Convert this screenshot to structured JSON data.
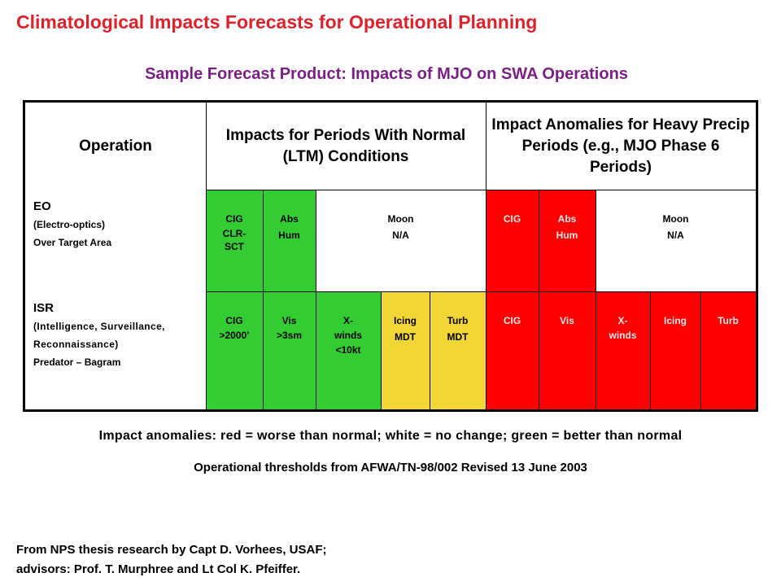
{
  "title": "Climatological Impacts Forecasts for Operational Planning",
  "subtitle": "Sample Forecast Product: Impacts of MJO on SWA Operations",
  "table": {
    "headers": [
      "Operation",
      "Impacts for Periods With Normal (LTM) Conditions",
      "Impact Anomalies for Heavy Precip Periods (e.g., MJO Phase 6 Periods)"
    ],
    "rows": [
      {
        "label_lines": [
          "EO",
          "(Electro-optics)",
          "Over Target Area"
        ],
        "normal_cells": [
          {
            "lines": [
              "CIG",
              "CLR-",
              "SCT"
            ],
            "color": "green"
          },
          {
            "lines": [
              "Abs",
              "Hum"
            ],
            "color": "green"
          },
          {
            "lines": [
              "Moon",
              "N/A"
            ],
            "color": "white"
          }
        ],
        "anomaly_cells": [
          {
            "lines": [
              "CIG"
            ],
            "color": "red"
          },
          {
            "lines": [
              "Abs",
              "Hum"
            ],
            "color": "red"
          },
          {
            "lines": [
              "Moon",
              "N/A"
            ],
            "color": "white"
          }
        ]
      },
      {
        "label_lines": [
          "ISR",
          "(Intelligence, Surveillance,",
          "Reconnaissance)",
          "Predator – Bagram"
        ],
        "normal_cells": [
          {
            "lines": [
              "CIG",
              ">2000’"
            ],
            "color": "green"
          },
          {
            "lines": [
              "Vis",
              ">3sm"
            ],
            "color": "green"
          },
          {
            "lines": [
              "X-",
              "winds",
              "<10kt"
            ],
            "color": "green"
          },
          {
            "lines": [
              "Icing",
              "MDT"
            ],
            "color": "yellow"
          },
          {
            "lines": [
              "Turb",
              "MDT"
            ],
            "color": "yellow"
          }
        ],
        "anomaly_cells": [
          {
            "lines": [
              "CIG"
            ],
            "color": "red"
          },
          {
            "lines": [
              "Vis"
            ],
            "color": "red"
          },
          {
            "lines": [
              "X-",
              "winds"
            ],
            "color": "red"
          },
          {
            "lines": [
              "Icing"
            ],
            "color": "red"
          },
          {
            "lines": [
              "Turb"
            ],
            "color": "red"
          }
        ]
      }
    ]
  },
  "colors": {
    "green": "#33cc33",
    "yellow": "#f2d635",
    "red": "#ff0000",
    "title": "#e0202a",
    "subtitle": "#7b1f86"
  },
  "note_anomalies": "Impact anomalies: red = worse than normal; white = no change; green = better than normal",
  "note_thresholds": "Operational thresholds from AFWA/TN-98/002 Revised 13 June 2003",
  "credits": [
    "From NPS thesis research by Capt D. Vorhees, USAF;",
    "advisors: Prof. T. Murphree and Lt Col K. Pfeiffer."
  ]
}
